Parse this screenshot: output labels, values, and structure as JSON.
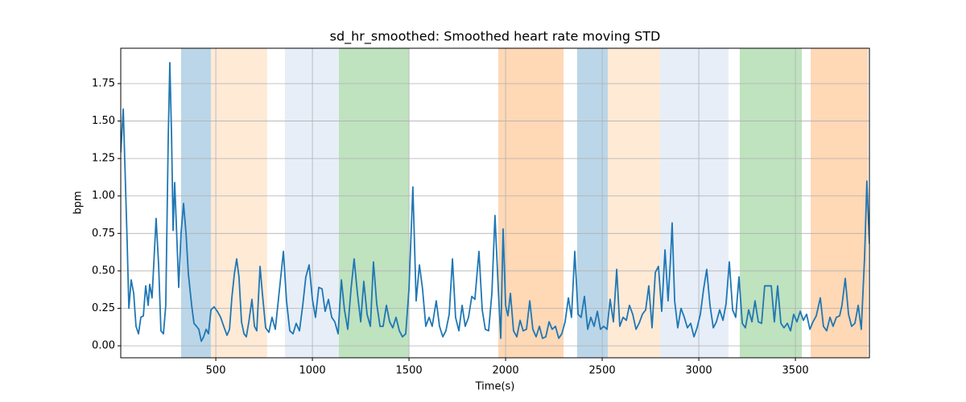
{
  "chart_data": {
    "type": "line",
    "title": "sd_hr_smoothed: Smoothed heart rate moving STD",
    "xlabel": "Time(s)",
    "ylabel": "bpm",
    "xlim": [
      8,
      3883
    ],
    "ylim": [
      -0.08,
      1.986
    ],
    "xticks": [
      500,
      1000,
      1500,
      2000,
      2500,
      3000,
      3500
    ],
    "yticks": [
      {
        "value": 0,
        "label": "0.00"
      },
      {
        "value": 0.25,
        "label": "0.25"
      },
      {
        "value": 0.5,
        "label": "0.50"
      },
      {
        "value": 0.75,
        "label": "0.75"
      },
      {
        "value": 1,
        "label": "1.00"
      },
      {
        "value": 1.25,
        "label": "1.25"
      },
      {
        "value": 1.5,
        "label": "1.50"
      },
      {
        "value": 1.75,
        "label": "1.75"
      }
    ],
    "grid": true,
    "span_alpha": 0.3,
    "spans": [
      {
        "start": 320,
        "end": 475,
        "color": "#1f77b4"
      },
      {
        "start": 475,
        "end": 766,
        "color": "#ffbb78"
      },
      {
        "start": 858,
        "end": 1137,
        "color": "#aec7e8"
      },
      {
        "start": 1137,
        "end": 1500,
        "color": "#2ca02c"
      },
      {
        "start": 1962,
        "end": 2300,
        "color": "#ff7f0e"
      },
      {
        "start": 2370,
        "end": 2529,
        "color": "#1f77b4"
      },
      {
        "start": 2529,
        "end": 2800,
        "color": "#ffbb78"
      },
      {
        "start": 2800,
        "end": 3154,
        "color": "#aec7e8"
      },
      {
        "start": 3212,
        "end": 3533,
        "color": "#2ca02c"
      },
      {
        "start": 3579,
        "end": 3875,
        "color": "#ff7f0e"
      }
    ],
    "color": "#1f77b4",
    "x": [
      8,
      21,
      41,
      50,
      62,
      75,
      87,
      100,
      112,
      125,
      137,
      150,
      158,
      170,
      191,
      204,
      216,
      229,
      241,
      254,
      262,
      271,
      279,
      287,
      296,
      308,
      320,
      333,
      346,
      358,
      375,
      387,
      400,
      412,
      425,
      437,
      450,
      462,
      475,
      491,
      508,
      525,
      541,
      558,
      571,
      583,
      596,
      608,
      620,
      633,
      646,
      658,
      671,
      687,
      700,
      712,
      729,
      741,
      758,
      775,
      791,
      808,
      825,
      850,
      866,
      883,
      900,
      916,
      933,
      950,
      966,
      983,
      1000,
      1016,
      1033,
      1050,
      1066,
      1083,
      1100,
      1116,
      1133,
      1150,
      1166,
      1183,
      1200,
      1216,
      1233,
      1250,
      1266,
      1283,
      1300,
      1316,
      1333,
      1350,
      1366,
      1383,
      1400,
      1416,
      1433,
      1450,
      1466,
      1483,
      1500,
      1520,
      1537,
      1554,
      1570,
      1587,
      1604,
      1620,
      1641,
      1658,
      1675,
      1691,
      1708,
      1725,
      1741,
      1758,
      1775,
      1791,
      1808,
      1825,
      1841,
      1862,
      1879,
      1895,
      1912,
      1929,
      1945,
      1962,
      1975,
      1987,
      2000,
      2012,
      2025,
      2041,
      2058,
      2075,
      2091,
      2108,
      2125,
      2141,
      2158,
      2175,
      2191,
      2208,
      2225,
      2241,
      2258,
      2275,
      2291,
      2308,
      2325,
      2341,
      2358,
      2375,
      2391,
      2408,
      2425,
      2441,
      2458,
      2475,
      2491,
      2508,
      2525,
      2541,
      2558,
      2575,
      2591,
      2608,
      2625,
      2641,
      2658,
      2675,
      2691,
      2708,
      2725,
      2741,
      2758,
      2775,
      2791,
      2808,
      2825,
      2841,
      2854,
      2862,
      2875,
      2891,
      2908,
      2925,
      2941,
      2958,
      2975,
      2991,
      3008,
      3025,
      3041,
      3058,
      3075,
      3091,
      3108,
      3125,
      3141,
      3158,
      3175,
      3191,
      3208,
      3225,
      3241,
      3258,
      3275,
      3291,
      3308,
      3325,
      3341,
      3358,
      3375,
      3391,
      3408,
      3425,
      3441,
      3458,
      3475,
      3491,
      3508,
      3525,
      3541,
      3558,
      3575,
      3591,
      3608,
      3629,
      3645,
      3662,
      3679,
      3695,
      3712,
      3729,
      3741,
      3758,
      3775,
      3791,
      3808,
      3825,
      3841,
      3858,
      3870,
      3883
    ],
    "values": [
      1.29,
      1.58,
      0.7,
      0.25,
      0.44,
      0.35,
      0.13,
      0.08,
      0.19,
      0.2,
      0.4,
      0.27,
      0.41,
      0.32,
      0.85,
      0.54,
      0.1,
      0.08,
      0.27,
      1.4,
      1.89,
      1.4,
      0.77,
      1.09,
      0.8,
      0.39,
      0.75,
      0.95,
      0.75,
      0.48,
      0.27,
      0.15,
      0.13,
      0.11,
      0.03,
      0.06,
      0.11,
      0.08,
      0.24,
      0.26,
      0.23,
      0.19,
      0.13,
      0.07,
      0.11,
      0.32,
      0.48,
      0.58,
      0.46,
      0.16,
      0.08,
      0.06,
      0.16,
      0.31,
      0.13,
      0.1,
      0.53,
      0.35,
      0.12,
      0.09,
      0.19,
      0.11,
      0.32,
      0.63,
      0.3,
      0.1,
      0.08,
      0.15,
      0.1,
      0.27,
      0.46,
      0.54,
      0.31,
      0.19,
      0.39,
      0.38,
      0.23,
      0.31,
      0.19,
      0.16,
      0.08,
      0.44,
      0.24,
      0.11,
      0.38,
      0.58,
      0.35,
      0.16,
      0.43,
      0.21,
      0.13,
      0.56,
      0.28,
      0.13,
      0.13,
      0.27,
      0.16,
      0.12,
      0.19,
      0.1,
      0.06,
      0.08,
      0.38,
      1.06,
      0.3,
      0.54,
      0.38,
      0.13,
      0.19,
      0.13,
      0.3,
      0.13,
      0.06,
      0.1,
      0.21,
      0.58,
      0.19,
      0.1,
      0.27,
      0.13,
      0.19,
      0.33,
      0.31,
      0.63,
      0.24,
      0.11,
      0.1,
      0.35,
      0.87,
      0.38,
      0.05,
      0.78,
      0.27,
      0.2,
      0.35,
      0.1,
      0.06,
      0.17,
      0.1,
      0.11,
      0.3,
      0.11,
      0.06,
      0.13,
      0.05,
      0.06,
      0.16,
      0.11,
      0.13,
      0.05,
      0.08,
      0.16,
      0.32,
      0.19,
      0.63,
      0.21,
      0.19,
      0.33,
      0.11,
      0.19,
      0.13,
      0.23,
      0.11,
      0.13,
      0.11,
      0.31,
      0.16,
      0.51,
      0.13,
      0.19,
      0.17,
      0.27,
      0.21,
      0.11,
      0.15,
      0.21,
      0.24,
      0.4,
      0.12,
      0.49,
      0.53,
      0.23,
      0.64,
      0.3,
      0.59,
      0.82,
      0.3,
      0.12,
      0.25,
      0.19,
      0.12,
      0.15,
      0.06,
      0.12,
      0.21,
      0.38,
      0.51,
      0.27,
      0.12,
      0.16,
      0.24,
      0.17,
      0.28,
      0.56,
      0.24,
      0.19,
      0.46,
      0.15,
      0.12,
      0.24,
      0.16,
      0.3,
      0.16,
      0.15,
      0.4,
      0.4,
      0.4,
      0.16,
      0.4,
      0.15,
      0.12,
      0.15,
      0.1,
      0.21,
      0.16,
      0.23,
      0.17,
      0.21,
      0.11,
      0.16,
      0.2,
      0.32,
      0.13,
      0.1,
      0.19,
      0.13,
      0.19,
      0.2,
      0.27,
      0.45,
      0.21,
      0.13,
      0.15,
      0.27,
      0.11,
      0.59,
      1.1,
      0.68
    ]
  }
}
